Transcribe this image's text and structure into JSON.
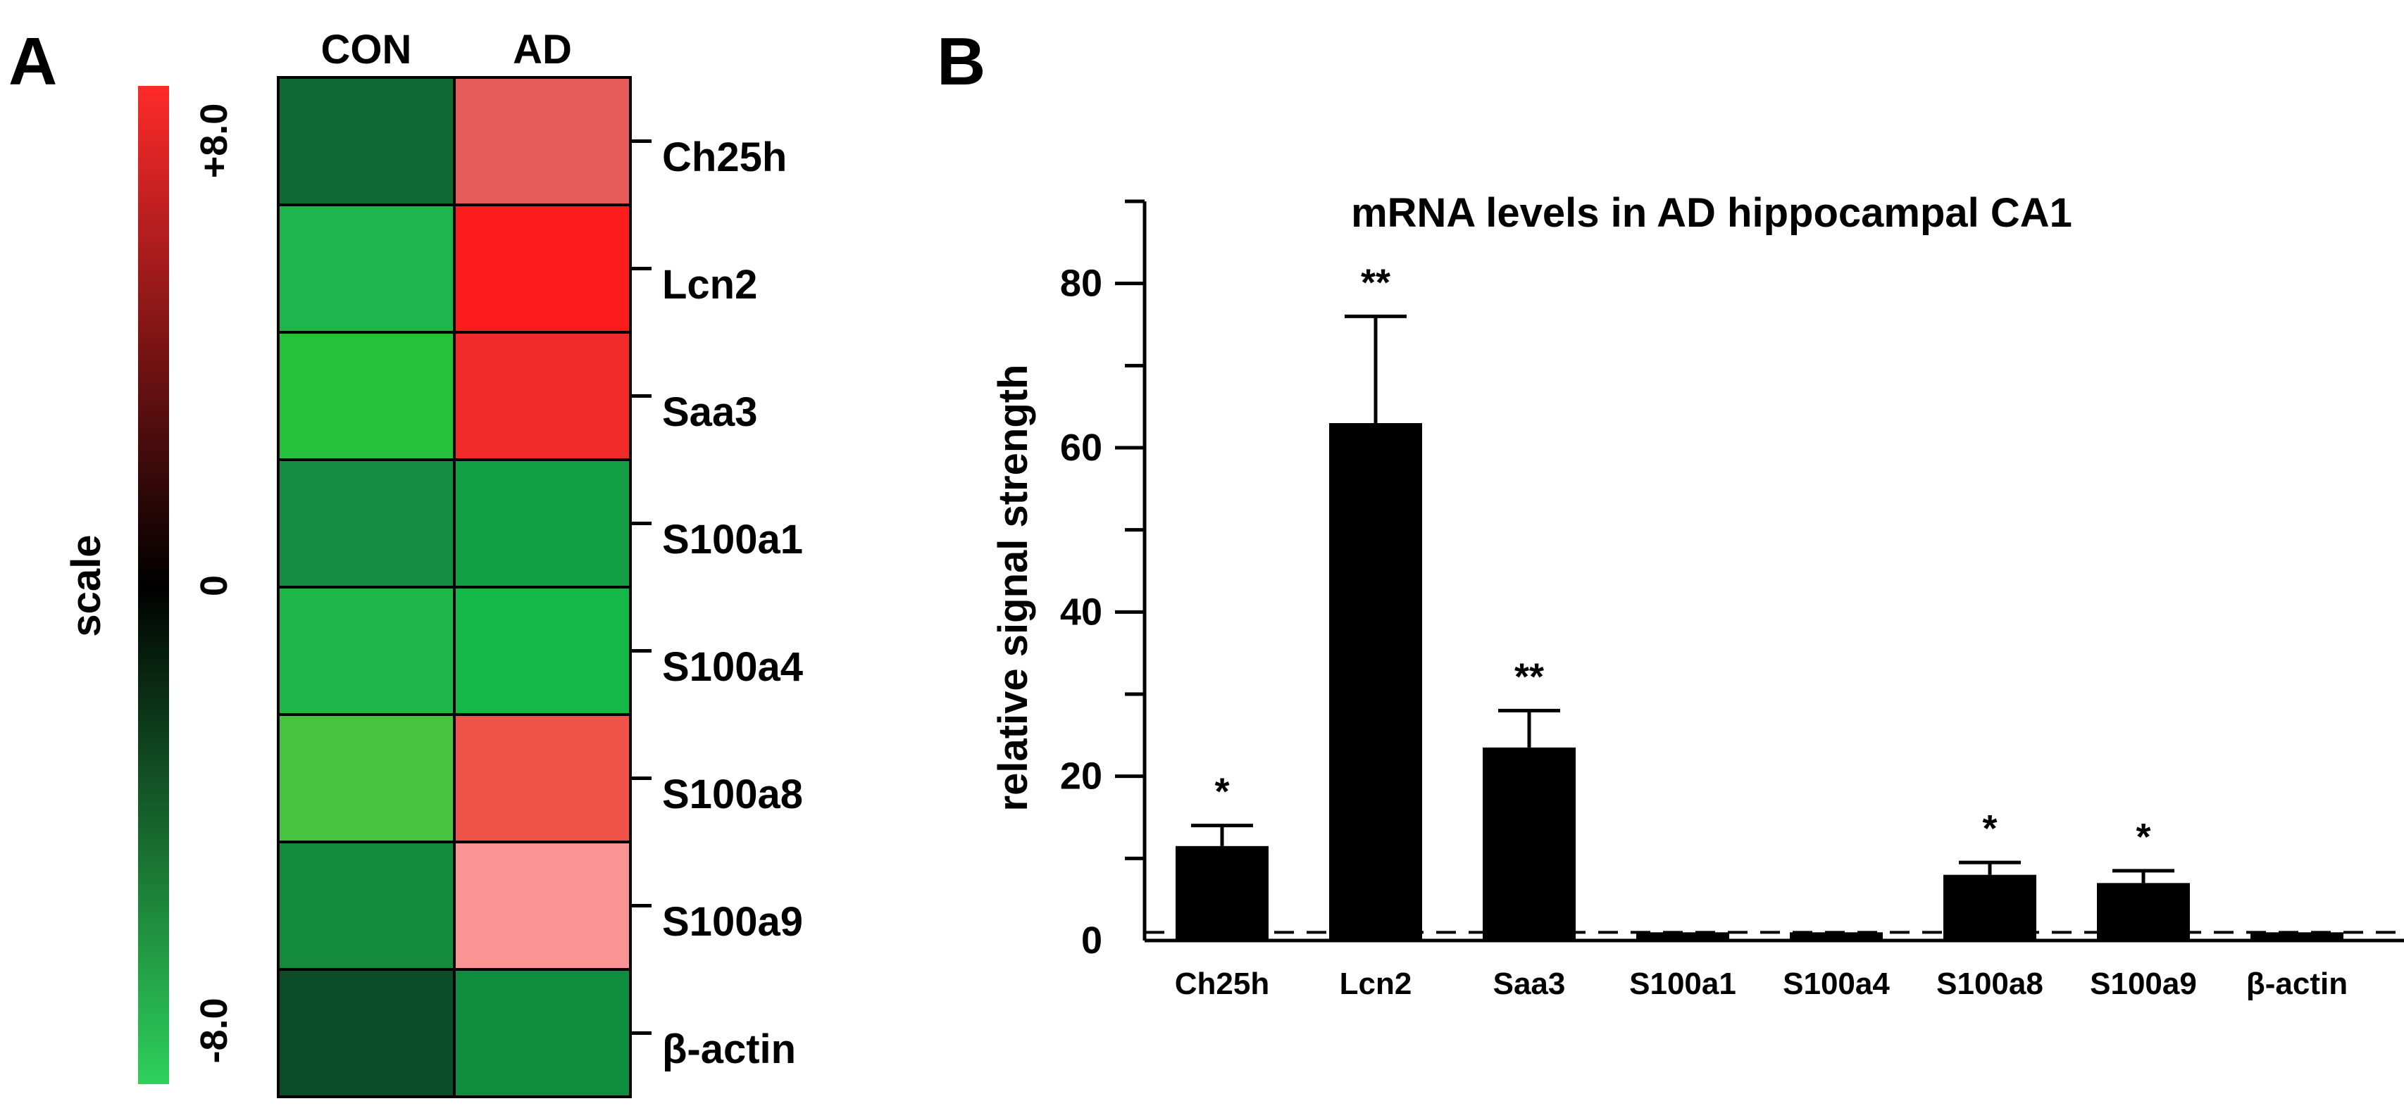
{
  "figure": {
    "panel_a_letter": "A",
    "panel_b_letter": "B"
  },
  "chart_data": [
    {
      "type": "heatmap",
      "columns": [
        "CON",
        "AD"
      ],
      "rows": [
        "Ch25h",
        "Lcn2",
        "Saa3",
        "S100a1",
        "S100a4",
        "S100a8",
        "S100a9",
        "β-actin"
      ],
      "values": [
        [
          -2.5,
          5.5
        ],
        [
          -6.5,
          8.0
        ],
        [
          -7.5,
          7.0
        ],
        [
          -4.0,
          -5.0
        ],
        [
          -6.5,
          -6.5
        ],
        [
          -8.0,
          5.5
        ],
        [
          -4.5,
          3.5
        ],
        [
          -2.0,
          -4.5
        ]
      ],
      "colors": [
        [
          "#0e6a32",
          "#e85b5b"
        ],
        [
          "#1db64c",
          "#fb1b1b"
        ],
        [
          "#26c13a",
          "#f22a2a"
        ],
        [
          "#138e43",
          "#12a043"
        ],
        [
          "#1cb748",
          "#14b849"
        ],
        [
          "#47c340",
          "#ef5248"
        ],
        [
          "#138c3e",
          "#fa9393"
        ],
        [
          "#0a4c25",
          "#0e8d3f"
        ]
      ],
      "scale": {
        "label": "scale",
        "min": -8.0,
        "max": 8.0,
        "ticks": [
          "+8.0",
          "0",
          "-8.0"
        ],
        "colors": [
          "#ff2a2a",
          "#000000",
          "#2ed15c"
        ]
      },
      "grid": true
    },
    {
      "type": "bar",
      "title": "mRNA levels in AD hippocampal CA1",
      "xlabel": "",
      "ylabel": "relative signal strength",
      "ylim": [
        0,
        90
      ],
      "yticks": [
        0,
        20,
        40,
        60,
        80
      ],
      "categories": [
        "Ch25h",
        "Lcn2",
        "Saa3",
        "S100a1",
        "S100a4",
        "S100a8",
        "S100a9",
        "β-actin"
      ],
      "values": [
        11.5,
        63,
        23.5,
        1.0,
        1.0,
        8.0,
        7.0,
        1.0
      ],
      "errors": [
        2.5,
        13,
        4.5,
        0,
        0,
        1.5,
        1.5,
        0
      ],
      "significance": [
        "*",
        "**",
        "**",
        "",
        "",
        "*",
        "*",
        ""
      ],
      "reference_line": 1,
      "bar_color": "#000000",
      "grid": false
    }
  ]
}
